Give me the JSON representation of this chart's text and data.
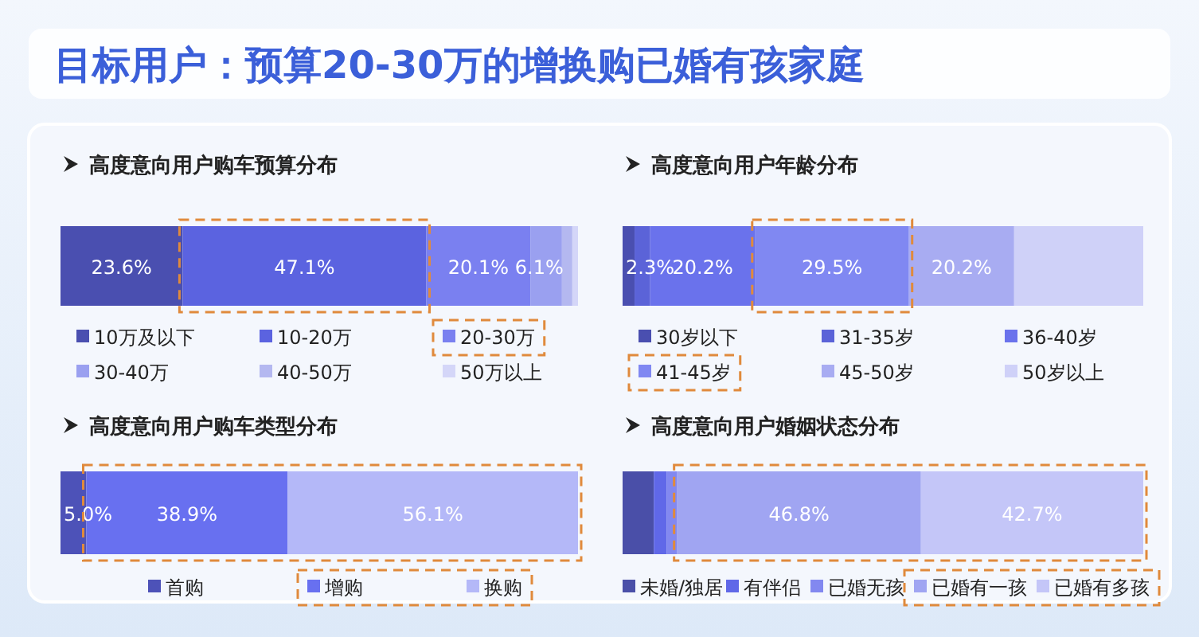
{
  "chart_data": [
    {
      "type": "bar",
      "orientation": "horizontal",
      "stacked": true,
      "title": "目标用户：预算20-30万的增换购已婚有孩家庭",
      "subtitle": "高度意向用户购车预算分布",
      "categories": [
        null
      ],
      "xlim": [
        0,
        100
      ],
      "tick_labels": false,
      "legend": "bottom",
      "series": [
        {
          "name": "10万及以下",
          "color": "#4a4fb0",
          "values": [
            23.6
          ],
          "value_labels": [
            "23.6%"
          ]
        },
        {
          "name": "10-20万",
          "color": "#5b63e0",
          "values": [
            47.1
          ],
          "value_labels": [
            "47.1%"
          ]
        },
        {
          "name": "20-30万",
          "color": "#7a80f0",
          "values": [
            20.1
          ],
          "value_labels": [
            "20.1%"
          ]
        },
        {
          "name": "30-40万",
          "color": "#9aa0f0",
          "values": [
            6.1
          ],
          "value_labels": [
            "6.1%"
          ]
        },
        {
          "name": "40-50万",
          "color": "#b4b8f0",
          "values": [
            2.0
          ],
          "value_labels": [
            null
          ]
        },
        {
          "name": "50万以上",
          "color": "#d4d6f8",
          "values": [
            1.1
          ],
          "value_labels": [
            null
          ]
        }
      ]
    },
    {
      "type": "bar",
      "orientation": "horizontal",
      "stacked": true,
      "title": "高度意向用户年龄分布",
      "categories": [
        null
      ],
      "xlim": [
        0,
        100
      ],
      "tick_labels": false,
      "legend": "bottom",
      "series": [
        {
          "name": "30岁以下",
          "color": "#4a4fb0",
          "values": [
            2.3
          ],
          "value_labels": [
            "2.3%"
          ]
        },
        {
          "name": "31-35岁",
          "color": "#5b63d8",
          "values": [
            3.0
          ],
          "value_labels": [
            null
          ]
        },
        {
          "name": "36-40岁",
          "color": "#6a72ec",
          "values": [
            20.2
          ],
          "value_labels": [
            "20.2%"
          ]
        },
        {
          "name": "41-45岁",
          "color": "#8088f2",
          "values": [
            29.5
          ],
          "value_labels": [
            "29.5%"
          ]
        },
        {
          "name": "45-50岁",
          "color": "#a8acf2",
          "values": [
            20.2
          ],
          "value_labels": [
            "20.2%"
          ]
        },
        {
          "name": "50岁以上",
          "color": "#cfd1f8",
          "values": [
            24.8
          ],
          "value_labels": [
            null
          ]
        }
      ]
    },
    {
      "type": "bar",
      "orientation": "horizontal",
      "stacked": true,
      "title": "高度意向用户购车类型分布",
      "categories": [
        null
      ],
      "xlim": [
        0,
        100
      ],
      "tick_labels": false,
      "legend": "bottom",
      "series": [
        {
          "name": "首购",
          "color": "#4d52b8",
          "values": [
            5.0
          ],
          "value_labels": [
            "5.0%"
          ]
        },
        {
          "name": "增购",
          "color": "#6870f0",
          "values": [
            38.9
          ],
          "value_labels": [
            "38.9%"
          ]
        },
        {
          "name": "换购",
          "color": "#b4b8f8",
          "values": [
            56.1
          ],
          "value_labels": [
            "56.1%"
          ]
        }
      ]
    },
    {
      "type": "bar",
      "orientation": "horizontal",
      "stacked": true,
      "title": "高度意向用户婚姻状态分布",
      "categories": [
        null
      ],
      "xlim": [
        0,
        100
      ],
      "tick_labels": false,
      "legend": "bottom",
      "series": [
        {
          "name": "未婚/独居",
          "color": "#4a4fa8",
          "values": [
            6.0
          ],
          "value_labels": [
            null
          ]
        },
        {
          "name": "有伴侣",
          "color": "#6068e8",
          "values": [
            2.5
          ],
          "value_labels": [
            null
          ]
        },
        {
          "name": "已婚无孩",
          "color": "#8288f0",
          "values": [
            2.0
          ],
          "value_labels": [
            null
          ]
        },
        {
          "name": "已婚有一孩",
          "color": "#a0a5f2",
          "values": [
            46.8
          ],
          "value_labels": [
            "46.8%"
          ]
        },
        {
          "name": "已婚有多孩",
          "color": "#c4c6f8",
          "values": [
            42.7
          ],
          "value_labels": [
            "42.7%"
          ]
        }
      ]
    }
  ]
}
